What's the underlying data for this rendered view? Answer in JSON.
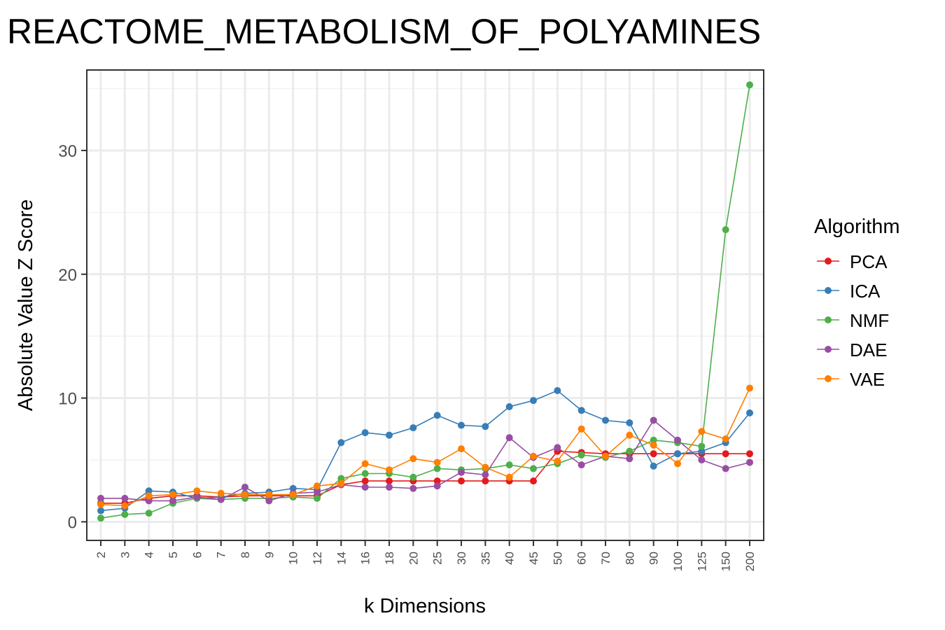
{
  "chart_data": {
    "type": "line",
    "title": "REACTOME_METABOLISM_OF_POLYAMINES",
    "xlabel": "k Dimensions",
    "ylabel": "Absolute Value Z Score",
    "categories": [
      "2",
      "3",
      "4",
      "5",
      "6",
      "7",
      "8",
      "9",
      "10",
      "12",
      "14",
      "16",
      "18",
      "20",
      "25",
      "30",
      "35",
      "40",
      "45",
      "50",
      "60",
      "70",
      "80",
      "90",
      "100",
      "125",
      "150",
      "200"
    ],
    "ylim": [
      -1.5,
      36.5
    ],
    "yticks": [
      0,
      10,
      20,
      30
    ],
    "grid": true,
    "legend": {
      "title": "Algorithm",
      "position": "right"
    },
    "series": [
      {
        "name": "PCA",
        "color": "#e41a1c",
        "values": [
          1.5,
          1.5,
          1.9,
          2.1,
          2.1,
          2.0,
          2.1,
          2.1,
          2.1,
          2.1,
          3.0,
          3.3,
          3.3,
          3.3,
          3.3,
          3.3,
          3.3,
          3.3,
          3.3,
          5.7,
          5.6,
          5.5,
          5.5,
          5.5,
          5.5,
          5.5,
          5.5,
          5.5
        ]
      },
      {
        "name": "ICA",
        "color": "#377eb8",
        "values": [
          0.9,
          1.1,
          2.5,
          2.4,
          1.9,
          2.0,
          2.3,
          2.4,
          2.7,
          2.6,
          6.4,
          7.2,
          7.0,
          7.6,
          8.6,
          7.8,
          7.7,
          9.3,
          9.8,
          10.6,
          9.0,
          8.2,
          8.0,
          4.5,
          5.5,
          5.7,
          6.4,
          8.8
        ]
      },
      {
        "name": "NMF",
        "color": "#4daf4a",
        "values": [
          0.3,
          0.6,
          0.7,
          1.5,
          1.9,
          1.8,
          1.9,
          1.9,
          2.0,
          1.9,
          3.5,
          3.9,
          3.9,
          3.6,
          4.3,
          4.2,
          4.3,
          4.6,
          4.3,
          4.7,
          5.4,
          5.2,
          5.7,
          6.6,
          6.4,
          6.1,
          23.6,
          35.3
        ]
      },
      {
        "name": "DAE",
        "color": "#984ea3",
        "values": [
          1.9,
          1.9,
          1.7,
          1.7,
          2.0,
          1.8,
          2.8,
          1.7,
          2.3,
          2.4,
          3.0,
          2.8,
          2.8,
          2.7,
          2.9,
          4.0,
          3.8,
          6.8,
          5.2,
          6.0,
          4.6,
          5.3,
          5.1,
          8.2,
          6.6,
          5.0,
          4.3,
          4.8
        ]
      },
      {
        "name": "VAE",
        "color": "#ff7f00",
        "values": [
          1.4,
          1.3,
          2.1,
          2.2,
          2.5,
          2.3,
          2.2,
          2.2,
          2.2,
          2.9,
          3.1,
          4.7,
          4.2,
          5.1,
          4.8,
          5.9,
          4.4,
          3.6,
          5.3,
          4.9,
          7.5,
          5.3,
          7.0,
          6.2,
          4.7,
          7.3,
          6.7,
          10.8
        ]
      }
    ]
  }
}
